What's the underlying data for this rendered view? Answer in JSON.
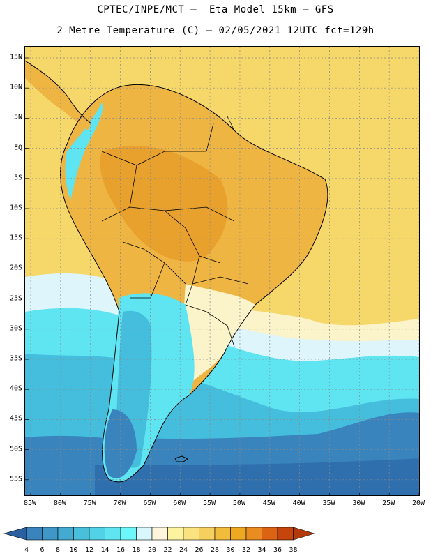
{
  "header": {
    "title_line1": "CPTEC/INPE/MCT –  Eta Model 15km – GFS",
    "title_line2": "2 Metre Temperature (C) – 02/05/2021 12UTC fct=129h"
  },
  "map": {
    "lat_labels": [
      "15N",
      "10N",
      "5N",
      "EQ",
      "5S",
      "10S",
      "15S",
      "20S",
      "25S",
      "30S",
      "35S",
      "40S",
      "45S",
      "50S",
      "55S"
    ],
    "lon_labels": [
      "85W",
      "80W",
      "75W",
      "70W",
      "65W",
      "60W",
      "55W",
      "50W",
      "45W",
      "40W",
      "35W",
      "30W",
      "25W",
      "20W"
    ],
    "colors": {
      "warm_ocean": "#f5d76a",
      "hot_land": "#efb542",
      "very_hot_land": "#e9a12e",
      "mild": "#fbf3c9",
      "pale": "#ddf5fb",
      "cyan": "#5fe4f2",
      "mid_blue": "#45bede",
      "deep_blue": "#3a84bd",
      "darkest": "#2f6fae"
    }
  },
  "colorbar": {
    "labels": [
      "4",
      "6",
      "8",
      "10",
      "12",
      "14",
      "16",
      "18",
      "20",
      "22",
      "24",
      "26",
      "28",
      "30",
      "32",
      "34",
      "36",
      "38"
    ],
    "colors": [
      "#2f6fae",
      "#3a84bd",
      "#3f97c8",
      "#45aad2",
      "#4abfdc",
      "#52d2e6",
      "#5fe4f2",
      "#6ef7fb",
      "#d8f6fb",
      "#fdf6dc",
      "#fbf3a0",
      "#f9e27f",
      "#f5d05f",
      "#f1bb3c",
      "#eea821",
      "#e98c22",
      "#dc6214",
      "#c6450c",
      "#b33a0c"
    ],
    "left_arrow_color": "#2a5fa0",
    "right_arrow_color": "#b33a0c"
  }
}
